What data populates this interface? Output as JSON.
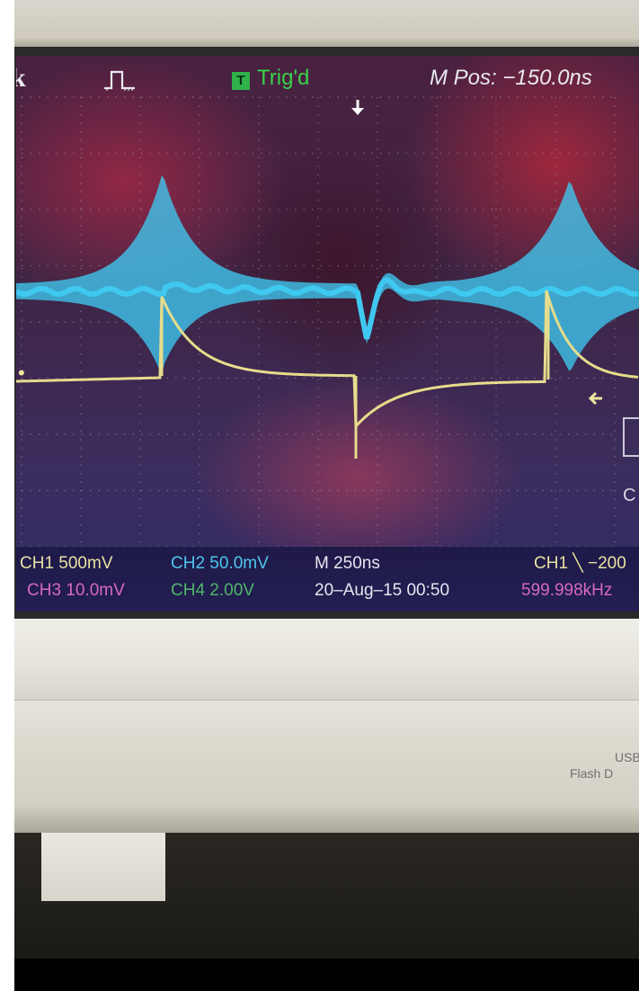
{
  "screen": {
    "brand_glyph": "k",
    "trigger_badge": "T",
    "trigger_status": "Trig'd",
    "mpos_label": "M Pos: ",
    "mpos_value": "−150.0ns"
  },
  "status_bar": {
    "ch1": "CH1  500mV",
    "ch2": "CH2  50.0mV",
    "ch3": "CH3  10.0mV",
    "ch4": "CH4  2.00V",
    "timebase": "M 250ns",
    "date": "20–Aug–15 00:50",
    "trigger_source": "CH1 ╲ −200",
    "frequency": "599.998kHz"
  },
  "side": {
    "menu_char": "C"
  },
  "case": {
    "usb_line1": "USB",
    "usb_line2": "Flash D"
  },
  "colors": {
    "ch1_trace": "#e6dc8c",
    "ch2_trace": "#3fc8f0",
    "grid": "#b9b2c8"
  }
}
